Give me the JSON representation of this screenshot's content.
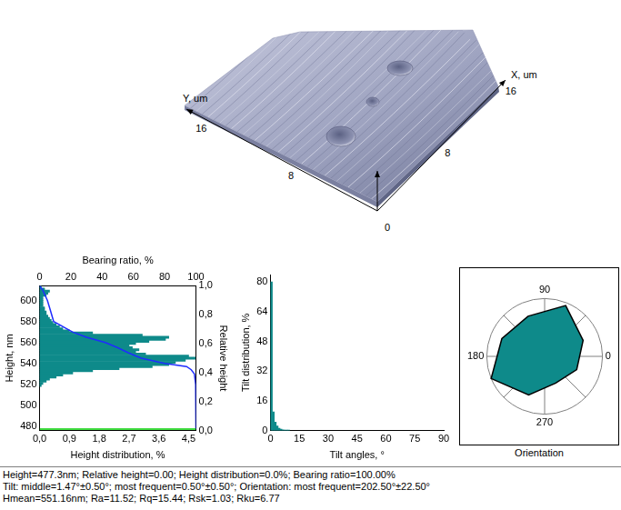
{
  "surface": {
    "x_label": "X, um",
    "y_label": "Y, um",
    "xlim": [
      0,
      17
    ],
    "ylim": [
      0,
      17
    ],
    "xticks": [
      8,
      16
    ],
    "yticks": [
      8,
      16
    ],
    "zticks": [
      0
    ]
  },
  "chart_data": [
    {
      "type": "histogram",
      "orientation": "horizontal",
      "x_label": "Height distribution, %",
      "y_label": "Height, nm",
      "x2_label": "Bearing ratio, %",
      "y2_label": "Relative height",
      "bins": [
        518,
        520,
        522,
        524,
        526,
        528,
        530,
        532,
        534,
        536,
        538,
        540,
        542,
        544,
        546,
        548,
        550,
        552,
        554,
        556,
        558,
        560,
        562,
        564,
        566,
        568,
        570,
        572,
        574,
        576,
        578,
        580,
        582,
        584,
        586,
        588,
        590,
        592,
        594,
        596,
        598,
        600,
        602,
        604,
        606,
        608,
        610,
        612,
        614
      ],
      "values": [
        0.05,
        0.1,
        0.2,
        0.3,
        0.5,
        0.7,
        1.0,
        1.6,
        2.4,
        3.4,
        3.9,
        4.1,
        4.4,
        4.7,
        4.5,
        3.2,
        2.9,
        3.0,
        2.8,
        2.7,
        2.9,
        3.3,
        3.8,
        3.9,
        3.1,
        1.6,
        0.9,
        0.7,
        0.6,
        0.5,
        0.4,
        0.35,
        0.3,
        0.25,
        0.2,
        0.2,
        0.15,
        0.15,
        0.1,
        0.1,
        0.1,
        0.1,
        0.1,
        0.2,
        0.25,
        0.3,
        0.15,
        0.05
      ],
      "color": "#0e8a8a",
      "xlim": [
        0,
        4.72
      ],
      "xticks": [
        {
          "value": 0,
          "label": "0,0"
        },
        {
          "value": 0.9,
          "label": "0,9"
        },
        {
          "value": 1.8,
          "label": "1,8"
        },
        {
          "value": 2.7,
          "label": "2,7"
        },
        {
          "value": 3.6,
          "label": "3,6"
        },
        {
          "value": 4.5,
          "label": "4,5"
        }
      ],
      "ylim": [
        476,
        614
      ],
      "yticks": [
        480,
        500,
        520,
        540,
        560,
        580,
        600
      ],
      "x2lim": [
        0,
        100
      ],
      "x2ticks": [
        0,
        20,
        40,
        60,
        80,
        100
      ],
      "y2lim": [
        0,
        1
      ],
      "y2ticks": [
        {
          "value": 0,
          "label": "0,0"
        },
        {
          "value": 0.2,
          "label": "0,2"
        },
        {
          "value": 0.4,
          "label": "0,4"
        },
        {
          "value": 0.6,
          "label": "0,6"
        },
        {
          "value": 0.8,
          "label": "0,8"
        },
        {
          "value": 1,
          "label": "1,0"
        }
      ],
      "bearing_ratio": {
        "color": "#1e2cff",
        "heights": [
          614,
          610,
          600,
          590,
          580,
          570,
          565,
          560,
          555,
          550,
          545,
          540,
          537,
          534,
          530,
          520,
          500,
          477.3
        ],
        "values": [
          0,
          2,
          5,
          7,
          9,
          21,
          30,
          42,
          50,
          57,
          65,
          80,
          94,
          97,
          99,
          99.8,
          100,
          100
        ]
      },
      "cursor": {
        "height": 477.3,
        "color": "#00d000"
      }
    },
    {
      "type": "histogram",
      "x_label": "Tilt angles, °",
      "y_label": "Tilt distribution, %",
      "bins": [
        0,
        1,
        2,
        3,
        4,
        5,
        6,
        7,
        8,
        9,
        10
      ],
      "values": [
        80,
        10,
        4.5,
        2.5,
        1.2,
        0.7,
        0.4,
        0.3,
        0.2,
        0.2
      ],
      "color": "#0e8a8a",
      "xlim": [
        0,
        90
      ],
      "xticks": [
        0,
        15,
        30,
        45,
        60,
        75,
        90
      ],
      "ylim": [
        0,
        84
      ],
      "yticks": [
        0,
        16,
        32,
        48,
        64,
        80
      ]
    },
    {
      "type": "radar",
      "title": "Orientation",
      "theta": [
        90,
        67.5,
        45,
        22.5,
        0,
        337.5,
        315,
        292.5,
        270,
        247.5,
        225,
        202.5,
        180,
        157.5,
        135,
        112.5
      ],
      "values": [
        null,
        0.95,
        null,
        0.72,
        null,
        0.6,
        null,
        0.5,
        null,
        0.72,
        null,
        1.0,
        null,
        0.8,
        null,
        0.75
      ],
      "theta_ticks": [
        0,
        90,
        180,
        270
      ],
      "rlim": [
        0,
        1
      ],
      "color": "#0e8a8a"
    }
  ],
  "info_lines": [
    "Height=477.3nm; Relative height=0.00; Height distribution=0.0%; Bearing ratio=100.00%",
    "Tilt: middle=1.47°±0.50°; most frequent=0.50°±0.50°;  Orientation: most frequent=202.50°±22.50°",
    "Hmean=551.16nm; Ra=11.52; Rq=15.44; Rsk=1.03; Rku=6.77"
  ]
}
